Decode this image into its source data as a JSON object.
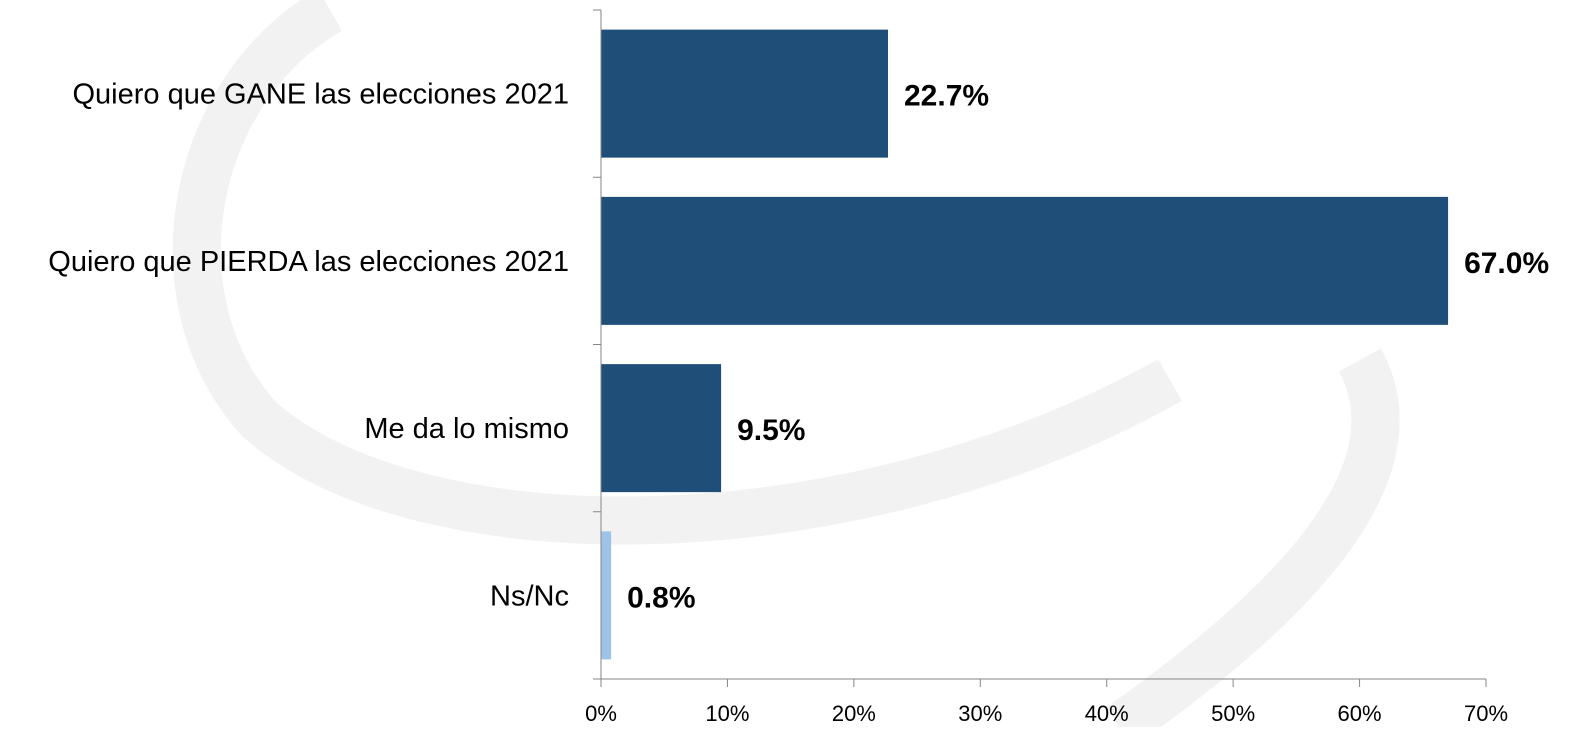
{
  "chart_data": {
    "type": "bar",
    "orientation": "horizontal",
    "categories": [
      "Quiero que GANE las elecciones 2021",
      "Quiero que  PIERDA las elecciones 2021",
      "Me da lo mismo",
      "Ns/Nc"
    ],
    "values": [
      22.7,
      67.0,
      9.5,
      0.8
    ],
    "value_labels": [
      "22.7%",
      "67.0%",
      "9.5%",
      "0.8%"
    ],
    "bar_colors": [
      "#1f4e79",
      "#1f4e79",
      "#1f4e79",
      "#9dc3e6"
    ],
    "xlim": [
      0,
      70
    ],
    "xticks": [
      0,
      10,
      20,
      30,
      40,
      50,
      60,
      70
    ],
    "xtick_labels": [
      "0%",
      "10%",
      "20%",
      "30%",
      "40%",
      "50%",
      "60%",
      "70%"
    ],
    "grid": false,
    "title": "",
    "xlabel": "",
    "ylabel": ""
  }
}
